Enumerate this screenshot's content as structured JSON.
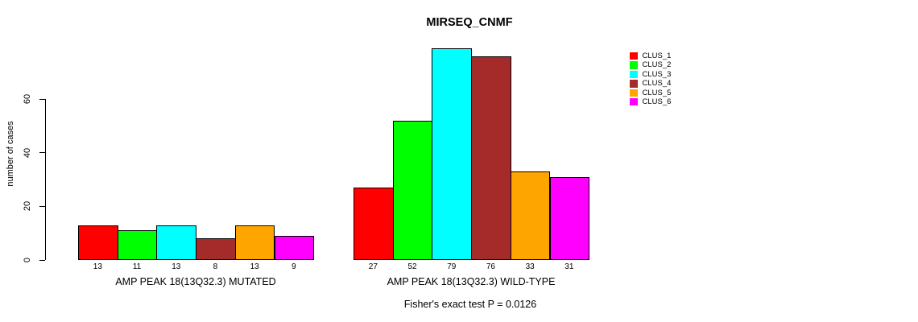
{
  "chart_data": {
    "type": "bar",
    "title": "MIRSEQ_CNMF",
    "ylabel": "number of cases",
    "yticks": [
      0,
      20,
      40,
      60
    ],
    "ylim": [
      0,
      60
    ],
    "grid": false,
    "legend_position": "right",
    "clusters": [
      {
        "name": "CLUS_1",
        "color": "#FF0000"
      },
      {
        "name": "CLUS_2",
        "color": "#00FF00"
      },
      {
        "name": "CLUS_3",
        "color": "#00FFFF"
      },
      {
        "name": "CLUS_4",
        "color": "#A52A2A"
      },
      {
        "name": "CLUS_5",
        "color": "#FFA500"
      },
      {
        "name": "CLUS_6",
        "color": "#FF00FF"
      }
    ],
    "groups": [
      {
        "label": "AMP PEAK 18(13Q32.3) MUTATED",
        "values": [
          13,
          11,
          13,
          8,
          13,
          9
        ]
      },
      {
        "label": "AMP PEAK 18(13Q32.3) WILD-TYPE",
        "values": [
          27,
          52,
          79,
          76,
          33,
          31
        ]
      }
    ],
    "footnote": "Fisher's exact test P = 0.0126"
  }
}
